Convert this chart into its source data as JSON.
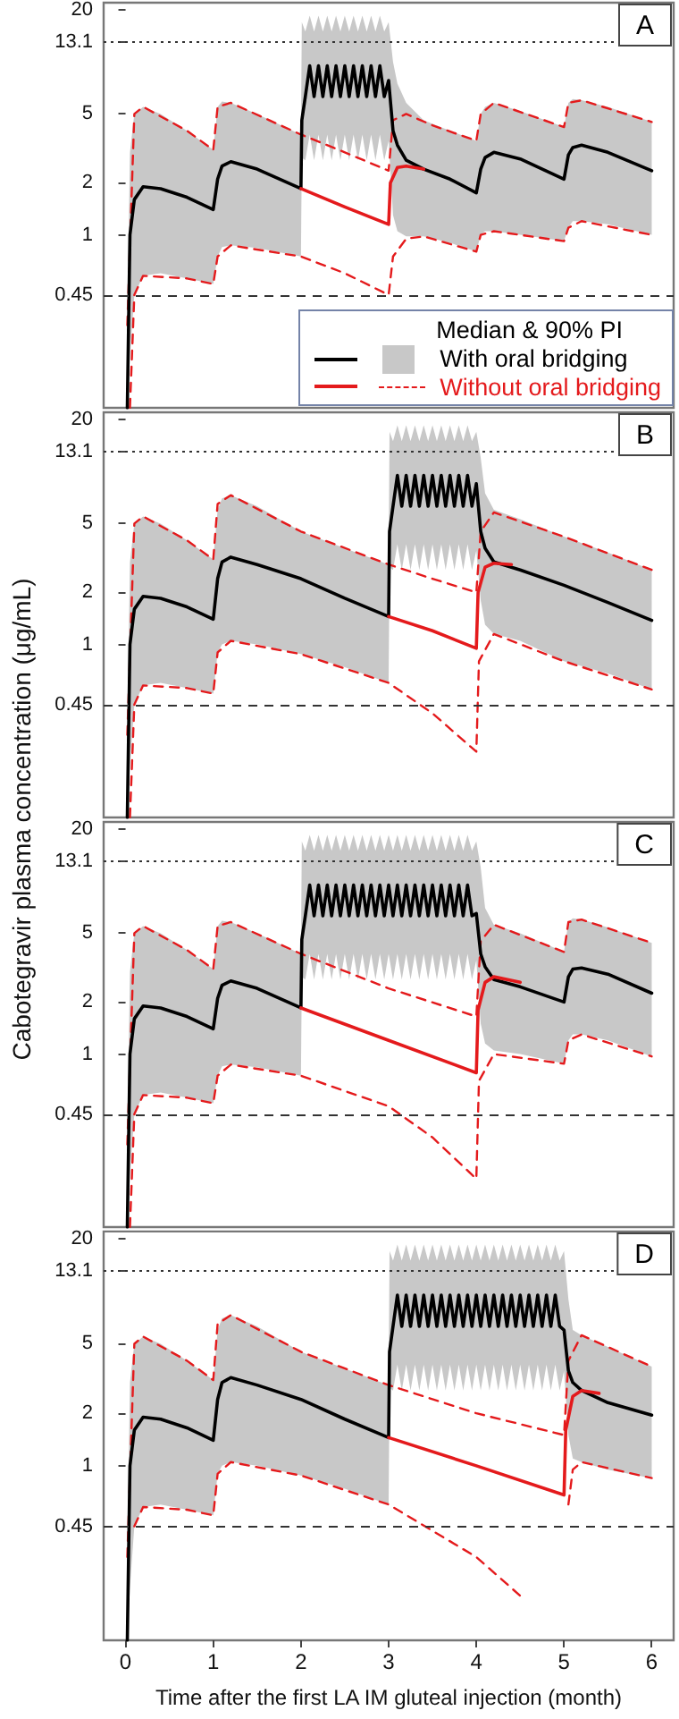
{
  "chart_data": [
    {
      "type": "line",
      "xlim": [
        -0.25,
        6.25
      ],
      "xticks": [
        0,
        1,
        2,
        3,
        4,
        5,
        6
      ],
      "ylim": [
        0.1,
        22
      ],
      "yticks": [
        0.45,
        1,
        2,
        5,
        13.1,
        20
      ],
      "log": true,
      "tick_labels": "y",
      "legend": "bottom right",
      "legend_title": "Median & 90% PI",
      "annotations": [
        "A"
      ],
      "ref_lines": [
        {
          "axis": "y",
          "value": 13.1,
          "line_style": "dotted"
        },
        {
          "axis": "y",
          "value": 0.45,
          "line_style": "dashed"
        }
      ],
      "series": [
        {
          "name": "With oral bridging",
          "color": "#000000",
          "x": [
            0.02,
            0.05,
            0.1,
            0.2,
            0.4,
            0.7,
            1.0,
            1.05,
            1.1,
            1.2,
            1.5,
            2.0,
            2.01,
            2.05,
            2.1,
            2.15,
            2.2,
            2.25,
            2.3,
            2.35,
            2.4,
            2.45,
            2.5,
            2.55,
            2.6,
            2.65,
            2.7,
            2.75,
            2.8,
            2.85,
            2.9,
            2.95,
            3.0,
            3.05,
            3.1,
            3.2,
            3.4,
            3.7,
            4.0,
            4.05,
            4.1,
            4.2,
            4.5,
            5.0,
            5.05,
            5.1,
            5.2,
            5.5,
            6.0
          ],
          "values": [
            0.1,
            1.0,
            1.6,
            1.9,
            1.85,
            1.65,
            1.4,
            2.1,
            2.5,
            2.65,
            2.4,
            1.85,
            4.6,
            6.3,
            9.5,
            6.3,
            9.5,
            6.3,
            9.5,
            6.3,
            9.5,
            6.3,
            9.5,
            6.3,
            9.5,
            6.3,
            9.5,
            6.3,
            9.5,
            6.3,
            9.5,
            6.3,
            7.8,
            4.0,
            3.3,
            2.7,
            2.4,
            2.1,
            1.75,
            2.4,
            2.8,
            3.0,
            2.75,
            2.1,
            2.9,
            3.2,
            3.3,
            3.0,
            2.35
          ],
          "lower": [
            0.1,
            0.2,
            0.45,
            0.58,
            0.6,
            0.56,
            0.52,
            0.75,
            0.85,
            0.87,
            0.84,
            0.75,
            2.8,
            2.7,
            3.8,
            2.7,
            3.8,
            2.7,
            3.8,
            2.7,
            3.8,
            2.7,
            3.8,
            2.7,
            3.8,
            2.7,
            3.8,
            2.7,
            3.8,
            2.7,
            3.8,
            2.7,
            3.5,
            1.3,
            1.05,
            0.98,
            0.98,
            0.9,
            0.8,
            1.0,
            1.05,
            1.05,
            1.0,
            0.92,
            1.1,
            1.2,
            1.2,
            1.15,
            1.0
          ],
          "upper": [
            0.3,
            3.0,
            5.0,
            5.5,
            5.0,
            4.0,
            3.1,
            5.5,
            5.9,
            5.8,
            5.0,
            3.8,
            17,
            15,
            18.5,
            15,
            18.5,
            15,
            18.5,
            15,
            18.5,
            15,
            18.5,
            15,
            18.5,
            15,
            18.5,
            15,
            18.5,
            15,
            18.5,
            15,
            17,
            10,
            7.5,
            5.8,
            4.6,
            4.0,
            3.5,
            5.0,
            5.5,
            5.8,
            5.2,
            4.2,
            5.8,
            6.1,
            6.0,
            5.5,
            4.5
          ]
        },
        {
          "name": "Without oral bridging",
          "color": "#e41a1c",
          "x": [
            2.0,
            2.5,
            3.0,
            3.02,
            3.1,
            3.2,
            3.4
          ],
          "values": [
            1.85,
            1.45,
            1.15,
            2.0,
            2.45,
            2.5,
            2.4
          ]
        },
        {
          "color": "#e41a1c",
          "line_style": "dashed",
          "x": [
            0.02,
            0.1,
            0.2,
            0.7,
            1.0,
            1.05,
            1.2,
            2.0,
            2.5,
            3.0,
            3.05,
            3.2,
            3.5,
            4.0,
            4.05,
            4.2,
            5.0,
            5.05,
            5.2,
            6.0
          ],
          "values": [
            0.3,
            5.0,
            5.5,
            4.0,
            3.1,
            5.5,
            5.8,
            3.8,
            3.0,
            2.35,
            4.6,
            5.0,
            4.3,
            3.5,
            5.0,
            5.8,
            4.2,
            5.8,
            6.0,
            4.5
          ]
        },
        {
          "color": "#e41a1c",
          "line_style": "dashed",
          "x": [
            0.05,
            0.1,
            0.2,
            0.7,
            1.0,
            1.05,
            1.2,
            2.0,
            2.5,
            3.0,
            3.05,
            3.2,
            3.4,
            4.0,
            4.05,
            4.2,
            5.0,
            5.05,
            5.2,
            6.0
          ],
          "values": [
            0.1,
            0.45,
            0.58,
            0.56,
            0.52,
            0.75,
            0.87,
            0.75,
            0.6,
            0.45,
            0.75,
            0.95,
            0.98,
            0.8,
            1.0,
            1.05,
            0.92,
            1.1,
            1.2,
            1.0
          ]
        }
      ]
    },
    {
      "type": "line",
      "xlim": [
        -0.25,
        6.25
      ],
      "xticks": [
        0,
        1,
        2,
        3,
        4,
        5,
        6
      ],
      "ylim": [
        0.1,
        22
      ],
      "yticks": [
        0.45,
        1,
        2,
        5,
        13.1,
        20
      ],
      "log": true,
      "tick_labels": "y",
      "annotations": [
        "B"
      ],
      "ylabel": "Cabotegravir plasma concentration (μg/mL)",
      "ref_lines": [
        {
          "axis": "y",
          "value": 13.1,
          "line_style": "dotted"
        },
        {
          "axis": "y",
          "value": 0.45,
          "line_style": "dashed"
        }
      ],
      "series": [
        {
          "color": "#000000",
          "x": [
            0.02,
            0.05,
            0.1,
            0.2,
            0.4,
            0.7,
            1.0,
            1.05,
            1.1,
            1.2,
            1.5,
            2.0,
            2.5,
            3.0,
            3.01,
            3.05,
            3.1,
            3.15,
            3.2,
            3.25,
            3.3,
            3.35,
            3.4,
            3.45,
            3.5,
            3.55,
            3.6,
            3.65,
            3.7,
            3.75,
            3.8,
            3.85,
            3.9,
            3.95,
            4.0,
            4.05,
            4.1,
            4.2,
            4.5,
            5.0,
            5.5,
            6.0
          ],
          "values": [
            0.1,
            1.0,
            1.6,
            1.9,
            1.85,
            1.65,
            1.4,
            2.4,
            3.0,
            3.2,
            2.9,
            2.4,
            1.85,
            1.45,
            4.5,
            6.3,
            9.5,
            6.3,
            9.5,
            6.3,
            9.5,
            6.3,
            9.5,
            6.3,
            9.5,
            6.3,
            9.5,
            6.3,
            9.5,
            6.3,
            9.5,
            6.3,
            9.5,
            6.3,
            8.5,
            4.5,
            3.6,
            3.0,
            2.7,
            2.2,
            1.75,
            1.38
          ],
          "lower": [
            0.1,
            0.2,
            0.45,
            0.58,
            0.6,
            0.56,
            0.52,
            0.9,
            1.0,
            1.05,
            1.0,
            0.88,
            0.74,
            0.6,
            2.8,
            2.7,
            3.8,
            2.7,
            3.8,
            2.7,
            3.8,
            2.7,
            3.8,
            2.7,
            3.8,
            2.7,
            3.8,
            2.7,
            3.8,
            2.7,
            3.8,
            2.7,
            3.8,
            2.7,
            3.5,
            1.8,
            1.3,
            1.15,
            1.05,
            0.8,
            0.68,
            0.55
          ],
          "upper": [
            0.3,
            3.0,
            5.0,
            5.5,
            5.0,
            4.0,
            3.1,
            6.0,
            7.0,
            7.3,
            6.3,
            4.5,
            3.6,
            2.9,
            17,
            15,
            18.5,
            15,
            18.5,
            15,
            18.5,
            15,
            18.5,
            15,
            18.5,
            15,
            18.5,
            15,
            18.5,
            15,
            18.5,
            15,
            18.5,
            15,
            17,
            12,
            7.5,
            6.0,
            5.3,
            4.2,
            3.4,
            2.7
          ]
        },
        {
          "color": "#e41a1c",
          "x": [
            3.0,
            3.5,
            4.0,
            4.02,
            4.1,
            4.2,
            4.4
          ],
          "values": [
            1.45,
            1.2,
            0.95,
            2.0,
            2.8,
            2.95,
            2.9
          ]
        },
        {
          "color": "#e41a1c",
          "line_style": "dashed",
          "x": [
            0.02,
            0.1,
            0.2,
            0.7,
            1.0,
            1.05,
            1.2,
            2.0,
            3.0,
            3.5,
            4.0,
            4.05,
            4.2,
            5.0,
            6.0
          ],
          "values": [
            0.3,
            5.0,
            5.5,
            4.0,
            3.1,
            6.5,
            7.3,
            4.5,
            2.9,
            2.4,
            2.0,
            4.5,
            5.8,
            4.2,
            2.7
          ]
        },
        {
          "color": "#e41a1c",
          "line_style": "dashed",
          "x": [
            0.05,
            0.1,
            0.2,
            0.7,
            1.0,
            1.05,
            1.2,
            2.0,
            3.0,
            3.5,
            4.0,
            4.03,
            4.2,
            5.0,
            6.0
          ],
          "values": [
            0.1,
            0.45,
            0.58,
            0.56,
            0.52,
            0.9,
            1.05,
            0.88,
            0.6,
            0.4,
            0.24,
            0.8,
            1.15,
            0.8,
            0.55
          ]
        }
      ]
    },
    {
      "type": "line",
      "xlim": [
        -0.25,
        6.25
      ],
      "xticks": [
        0,
        1,
        2,
        3,
        4,
        5,
        6
      ],
      "ylim": [
        0.1,
        22
      ],
      "yticks": [
        0.45,
        1,
        2,
        5,
        13.1,
        20
      ],
      "log": true,
      "tick_labels": "y",
      "annotations": [
        "C"
      ],
      "ref_lines": [
        {
          "axis": "y",
          "value": 13.1,
          "line_style": "dotted"
        },
        {
          "axis": "y",
          "value": 0.45,
          "line_style": "dashed"
        }
      ],
      "series": [
        {
          "color": "#000000",
          "x": [
            0.02,
            0.05,
            0.1,
            0.2,
            0.4,
            0.7,
            1.0,
            1.05,
            1.1,
            1.2,
            1.5,
            2.0,
            2.01,
            2.05,
            2.1,
            2.15,
            2.2,
            2.25,
            2.3,
            2.35,
            2.4,
            2.45,
            2.5,
            2.55,
            2.6,
            2.65,
            2.7,
            2.75,
            2.8,
            2.85,
            2.9,
            2.95,
            3.0,
            3.05,
            3.1,
            3.15,
            3.2,
            3.25,
            3.3,
            3.35,
            3.4,
            3.45,
            3.5,
            3.55,
            3.6,
            3.65,
            3.7,
            3.75,
            3.8,
            3.85,
            3.9,
            3.95,
            4.0,
            4.05,
            4.1,
            4.2,
            4.5,
            5.0,
            5.05,
            5.1,
            5.2,
            5.5,
            6.0
          ],
          "values": [
            0.1,
            1.0,
            1.6,
            1.9,
            1.85,
            1.65,
            1.4,
            2.1,
            2.5,
            2.65,
            2.4,
            1.85,
            4.6,
            6.3,
            9.5,
            6.3,
            9.5,
            6.3,
            9.5,
            6.3,
            9.5,
            6.3,
            9.5,
            6.3,
            9.5,
            6.3,
            9.5,
            6.3,
            9.5,
            6.3,
            9.5,
            6.3,
            9.5,
            6.3,
            9.5,
            6.3,
            9.5,
            6.3,
            9.5,
            6.3,
            9.5,
            6.3,
            9.5,
            6.3,
            9.5,
            6.3,
            9.5,
            6.3,
            9.5,
            6.3,
            9.5,
            6.3,
            6.5,
            3.8,
            3.2,
            2.7,
            2.45,
            2.0,
            2.8,
            3.1,
            3.15,
            2.9,
            2.25
          ],
          "lower": [
            0.1,
            0.2,
            0.45,
            0.58,
            0.6,
            0.56,
            0.52,
            0.75,
            0.85,
            0.87,
            0.84,
            0.75,
            2.8,
            2.7,
            3.8,
            2.7,
            3.8,
            2.7,
            3.8,
            2.7,
            3.8,
            2.7,
            3.8,
            2.7,
            3.8,
            2.7,
            3.8,
            2.7,
            3.8,
            2.7,
            3.8,
            2.7,
            3.8,
            2.7,
            3.8,
            2.7,
            3.8,
            2.7,
            3.8,
            2.7,
            3.8,
            2.7,
            3.8,
            2.7,
            3.8,
            2.7,
            3.8,
            2.7,
            3.8,
            2.7,
            3.8,
            2.7,
            3.5,
            1.5,
            1.15,
            1.05,
            1.0,
            0.88,
            1.2,
            1.3,
            1.3,
            1.2,
            0.97
          ],
          "upper": [
            0.3,
            3.0,
            5.0,
            5.5,
            5.0,
            4.0,
            3.1,
            5.5,
            5.9,
            5.8,
            5.0,
            3.8,
            17,
            15,
            18.5,
            15,
            18.5,
            15,
            18.5,
            15,
            18.5,
            15,
            18.5,
            15,
            18.5,
            15,
            18.5,
            15,
            18.5,
            15,
            18.5,
            15,
            18.5,
            15,
            18.5,
            15,
            18.5,
            15,
            18.5,
            15,
            18.5,
            15,
            18.5,
            15,
            18.5,
            15,
            18.5,
            15,
            18.5,
            15,
            18.5,
            15,
            17,
            12,
            7.0,
            5.6,
            5.0,
            3.9,
            5.8,
            6.1,
            6.0,
            5.4,
            4.4
          ]
        },
        {
          "color": "#e41a1c",
          "x": [
            2.0,
            3.0,
            4.0,
            4.02,
            4.1,
            4.2,
            4.5
          ],
          "values": [
            1.85,
            1.2,
            0.78,
            1.8,
            2.6,
            2.8,
            2.6
          ]
        },
        {
          "color": "#e41a1c",
          "line_style": "dashed",
          "x": [
            0.02,
            0.1,
            0.2,
            0.7,
            1.0,
            1.05,
            1.2,
            2.0,
            3.0,
            4.0,
            4.05,
            4.2,
            5.0,
            5.05,
            5.2,
            6.0
          ],
          "values": [
            0.3,
            5.0,
            5.5,
            4.0,
            3.1,
            5.5,
            5.8,
            3.8,
            2.4,
            1.65,
            4.5,
            5.6,
            3.9,
            5.8,
            6.0,
            4.4
          ]
        },
        {
          "color": "#e41a1c",
          "line_style": "dashed",
          "x": [
            0.05,
            0.1,
            0.2,
            0.7,
            1.0,
            1.05,
            1.2,
            2.0,
            3.0,
            3.5,
            4.0,
            4.03,
            4.2,
            5.0,
            5.05,
            5.2,
            6.0
          ],
          "values": [
            0.1,
            0.45,
            0.58,
            0.56,
            0.52,
            0.75,
            0.87,
            0.75,
            0.5,
            0.33,
            0.19,
            0.7,
            1.0,
            0.88,
            1.2,
            1.3,
            0.97
          ]
        }
      ]
    },
    {
      "type": "line",
      "xlim": [
        -0.25,
        6.25
      ],
      "xticks": [
        0,
        1,
        2,
        3,
        4,
        5,
        6
      ],
      "ylim": [
        0.1,
        22
      ],
      "yticks": [
        0.45,
        1,
        2,
        5,
        13.1,
        20
      ],
      "log": true,
      "annotations": [
        "D"
      ],
      "xlabel": "Time after the first LA IM gluteal injection (month)",
      "ref_lines": [
        {
          "axis": "y",
          "value": 13.1,
          "line_style": "dotted"
        },
        {
          "axis": "y",
          "value": 0.45,
          "line_style": "dashed"
        }
      ],
      "series": [
        {
          "color": "#000000",
          "x": [
            0.02,
            0.05,
            0.1,
            0.2,
            0.4,
            0.7,
            1.0,
            1.05,
            1.1,
            1.2,
            1.5,
            2.0,
            2.5,
            3.0,
            3.01,
            3.05,
            3.1,
            3.15,
            3.2,
            3.25,
            3.3,
            3.35,
            3.4,
            3.45,
            3.5,
            3.55,
            3.6,
            3.65,
            3.7,
            3.75,
            3.8,
            3.85,
            3.9,
            3.95,
            4.0,
            4.05,
            4.1,
            4.15,
            4.2,
            4.25,
            4.3,
            4.35,
            4.4,
            4.45,
            4.5,
            4.55,
            4.6,
            4.65,
            4.7,
            4.75,
            4.8,
            4.85,
            4.9,
            4.95,
            5.0,
            5.05,
            5.1,
            5.2,
            5.5,
            6.0
          ],
          "values": [
            0.1,
            1.0,
            1.6,
            1.9,
            1.85,
            1.65,
            1.4,
            2.4,
            3.0,
            3.2,
            2.9,
            2.4,
            1.85,
            1.45,
            4.5,
            6.3,
            9.5,
            6.3,
            9.5,
            6.3,
            9.5,
            6.3,
            9.5,
            6.3,
            9.5,
            6.3,
            9.5,
            6.3,
            9.5,
            6.3,
            9.5,
            6.3,
            9.5,
            6.3,
            9.5,
            6.3,
            9.5,
            6.3,
            9.5,
            6.3,
            9.5,
            6.3,
            9.5,
            6.3,
            9.5,
            6.3,
            9.5,
            6.3,
            9.5,
            6.3,
            9.5,
            6.3,
            9.5,
            6.3,
            6.0,
            3.5,
            3.0,
            2.7,
            2.3,
            1.95
          ],
          "lower": [
            0.1,
            0.2,
            0.45,
            0.58,
            0.6,
            0.56,
            0.52,
            0.9,
            1.0,
            1.05,
            1.0,
            0.88,
            0.74,
            0.6,
            2.8,
            2.7,
            3.8,
            2.7,
            3.8,
            2.7,
            3.8,
            2.7,
            3.8,
            2.7,
            3.8,
            2.7,
            3.8,
            2.7,
            3.8,
            2.7,
            3.8,
            2.7,
            3.8,
            2.7,
            3.8,
            2.7,
            3.8,
            2.7,
            3.8,
            2.7,
            3.8,
            2.7,
            3.8,
            2.7,
            3.8,
            2.7,
            3.8,
            2.7,
            3.8,
            2.7,
            3.8,
            2.7,
            3.8,
            2.7,
            3.5,
            1.5,
            1.1,
            1.05,
            0.95,
            0.85
          ],
          "upper": [
            0.3,
            3.0,
            5.0,
            5.5,
            5.0,
            4.0,
            3.1,
            6.0,
            7.0,
            7.3,
            6.3,
            4.5,
            3.6,
            2.9,
            17,
            15,
            18.5,
            15,
            18.5,
            15,
            18.5,
            15,
            18.5,
            15,
            18.5,
            15,
            18.5,
            15,
            18.5,
            15,
            18.5,
            15,
            18.5,
            15,
            18.5,
            15,
            18.5,
            15,
            18.5,
            15,
            18.5,
            15,
            18.5,
            15,
            18.5,
            15,
            18.5,
            15,
            18.5,
            15,
            18.5,
            15,
            18.5,
            15,
            17,
            9,
            6.0,
            5.6,
            4.8,
            3.7
          ]
        },
        {
          "color": "#e41a1c",
          "x": [
            3.0,
            4.0,
            5.0,
            5.02,
            5.1,
            5.2,
            5.4
          ],
          "values": [
            1.45,
            1.0,
            0.68,
            1.6,
            2.5,
            2.7,
            2.6
          ]
        },
        {
          "color": "#e41a1c",
          "line_style": "dashed",
          "x": [
            0.02,
            0.1,
            0.2,
            0.7,
            1.0,
            1.05,
            1.2,
            2.0,
            3.0,
            4.0,
            5.0,
            5.05,
            5.2,
            6.0
          ],
          "values": [
            0.3,
            5.0,
            5.5,
            4.0,
            3.1,
            6.5,
            7.3,
            4.5,
            2.9,
            2.0,
            1.5,
            4.0,
            5.6,
            3.7
          ]
        },
        {
          "color": "#e41a1c",
          "line_style": "dashed",
          "x": [
            0.1,
            0.2,
            0.7,
            1.0,
            1.05,
            1.2,
            2.0,
            3.0,
            4.0,
            4.5,
            4.9,
            5.05,
            5.1,
            5.2,
            6.0
          ],
          "values": [
            0.45,
            0.58,
            0.56,
            0.52,
            0.9,
            1.05,
            0.88,
            0.6,
            0.3,
            0.18,
            null,
            0.6,
            0.95,
            1.05,
            0.85
          ]
        }
      ]
    }
  ]
}
